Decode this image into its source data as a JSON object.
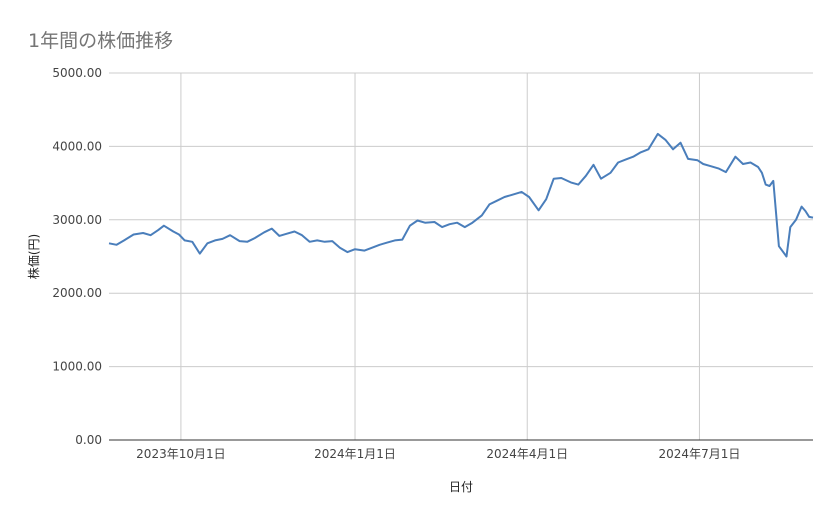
{
  "chart_data": {
    "type": "line",
    "title": "1年間の株価推移",
    "xlabel": "日付",
    "ylabel": "株価(円)",
    "ylim": [
      0,
      5000
    ],
    "y_ticks": [
      "0.00",
      "1000.00",
      "2000.00",
      "3000.00",
      "4000.00",
      "5000.00"
    ],
    "x_ticks": [
      {
        "date": "2023-10-01",
        "label": "2023年10月1日"
      },
      {
        "date": "2024-01-01",
        "label": "2024年1月1日"
      },
      {
        "date": "2024-04-01",
        "label": "2024年4月1日"
      },
      {
        "date": "2024-07-01",
        "label": "2024年7月1日"
      }
    ],
    "xlim": [
      "2023-08-24",
      "2024-08-30"
    ],
    "grid": true,
    "line_color": "#4a7ebb",
    "series": [
      {
        "x": [
          "2023-08-24",
          "2023-08-28",
          "2023-09-01",
          "2023-09-06",
          "2023-09-11",
          "2023-09-15",
          "2023-09-19",
          "2023-09-22",
          "2023-09-27",
          "2023-09-30",
          "2023-10-03",
          "2023-10-07",
          "2023-10-11",
          "2023-10-15",
          "2023-10-19",
          "2023-10-23",
          "2023-10-27",
          "2023-11-01",
          "2023-11-05",
          "2023-11-09",
          "2023-11-14",
          "2023-11-18",
          "2023-11-22",
          "2023-11-26",
          "2023-11-30",
          "2023-12-04",
          "2023-12-08",
          "2023-12-12",
          "2023-12-16",
          "2023-12-20",
          "2023-12-24",
          "2023-12-28",
          "2024-01-01",
          "2024-01-06",
          "2024-01-10",
          "2024-01-14",
          "2024-01-18",
          "2024-01-22",
          "2024-01-26",
          "2024-01-30",
          "2024-02-03",
          "2024-02-07",
          "2024-02-12",
          "2024-02-16",
          "2024-02-20",
          "2024-02-24",
          "2024-02-28",
          "2024-03-03",
          "2024-03-08",
          "2024-03-12",
          "2024-03-16",
          "2024-03-20",
          "2024-03-24",
          "2024-03-29",
          "2024-04-02",
          "2024-04-07",
          "2024-04-11",
          "2024-04-15",
          "2024-04-19",
          "2024-04-24",
          "2024-04-28",
          "2024-05-02",
          "2024-05-06",
          "2024-05-10",
          "2024-05-15",
          "2024-05-19",
          "2024-05-23",
          "2024-05-27",
          "2024-05-31",
          "2024-06-04",
          "2024-06-09",
          "2024-06-13",
          "2024-06-17",
          "2024-06-21",
          "2024-06-25",
          "2024-06-30",
          "2024-07-03",
          "2024-07-07",
          "2024-07-11",
          "2024-07-15",
          "2024-07-20",
          "2024-07-24",
          "2024-07-28",
          "2024-08-01",
          "2024-08-03",
          "2024-08-05",
          "2024-08-07",
          "2024-08-09",
          "2024-08-12",
          "2024-08-16",
          "2024-08-18",
          "2024-08-21",
          "2024-08-24",
          "2024-08-26",
          "2024-08-28",
          "2024-08-30"
        ],
        "values": [
          2680,
          2660,
          2720,
          2800,
          2820,
          2790,
          2860,
          2920,
          2840,
          2800,
          2720,
          2700,
          2540,
          2680,
          2720,
          2740,
          2790,
          2710,
          2700,
          2750,
          2830,
          2880,
          2780,
          2810,
          2840,
          2790,
          2700,
          2720,
          2700,
          2710,
          2620,
          2560,
          2600,
          2580,
          2620,
          2660,
          2690,
          2720,
          2730,
          2920,
          2990,
          2960,
          2970,
          2900,
          2940,
          2960,
          2900,
          2960,
          3060,
          3210,
          3260,
          3310,
          3340,
          3380,
          3310,
          3130,
          3280,
          3560,
          3570,
          3510,
          3480,
          3600,
          3750,
          3560,
          3640,
          3780,
          3820,
          3860,
          3920,
          3960,
          4170,
          4090,
          3960,
          4050,
          3830,
          3810,
          3760,
          3730,
          3700,
          3650,
          3860,
          3760,
          3780,
          3720,
          3640,
          3480,
          3460,
          3530,
          2640,
          2500,
          2900,
          3000,
          3180,
          3120,
          3040,
          3030
        ]
      }
    ]
  }
}
